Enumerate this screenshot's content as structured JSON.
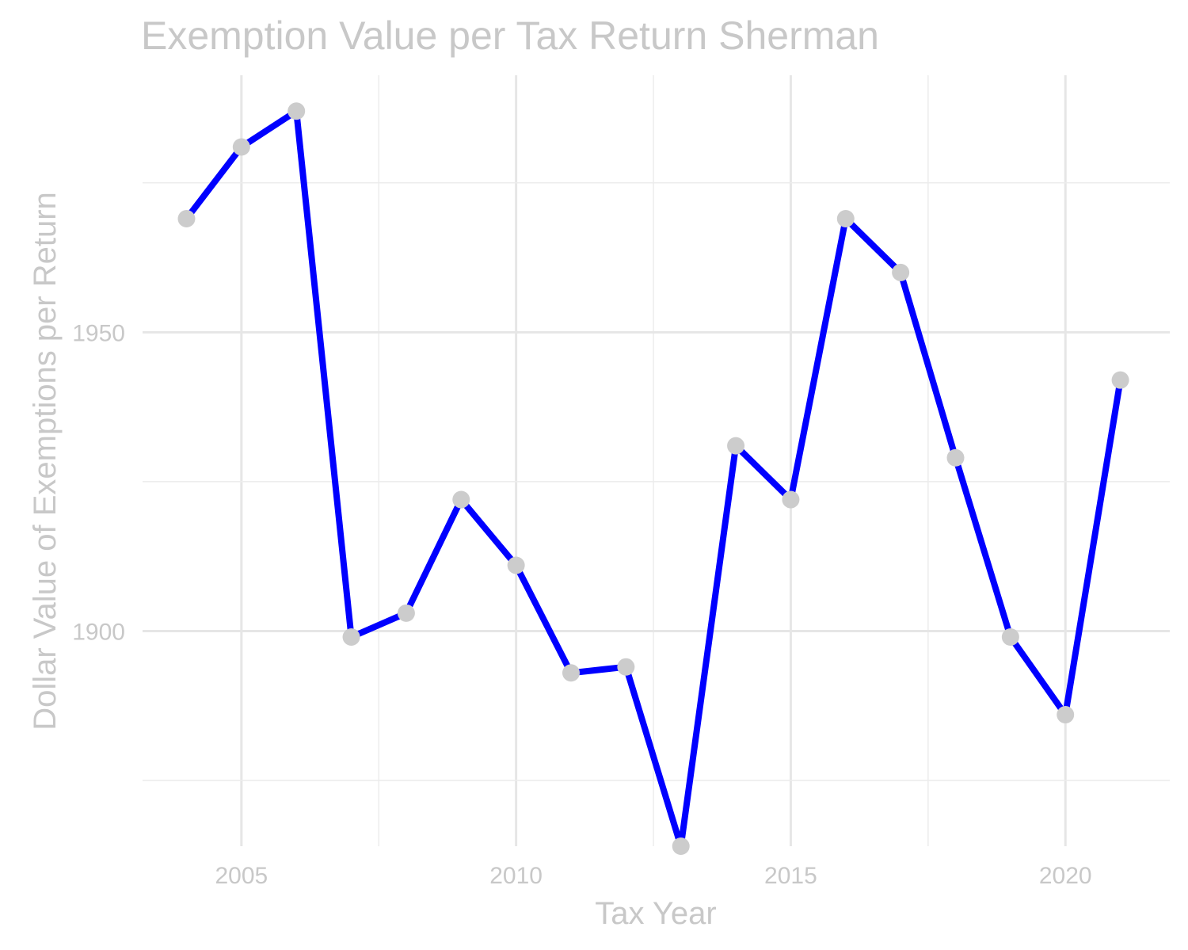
{
  "chart_data": {
    "type": "line",
    "title": "Exemption Value per Tax Return Sherman",
    "xlabel": "Tax Year",
    "ylabel": "Dollar Value of Exemptions per Return",
    "x": [
      2004,
      2005,
      2006,
      2007,
      2008,
      2009,
      2010,
      2011,
      2012,
      2013,
      2014,
      2015,
      2016,
      2017,
      2018,
      2019,
      2020,
      2021
    ],
    "y": [
      1969,
      1981,
      1987,
      1899,
      1903,
      1922,
      1911,
      1893,
      1894,
      1864,
      1931,
      1922,
      1969,
      1960,
      1929,
      1899,
      1886,
      1942
    ],
    "xlim": [
      2003.2,
      2021.9
    ],
    "ylim": [
      1864,
      1993
    ],
    "x_ticks": [
      2005,
      2010,
      2015,
      2020
    ],
    "y_ticks": [
      1900,
      1950
    ],
    "grid": true,
    "line_color": "#0000ff",
    "point_color": "#cccccc"
  }
}
